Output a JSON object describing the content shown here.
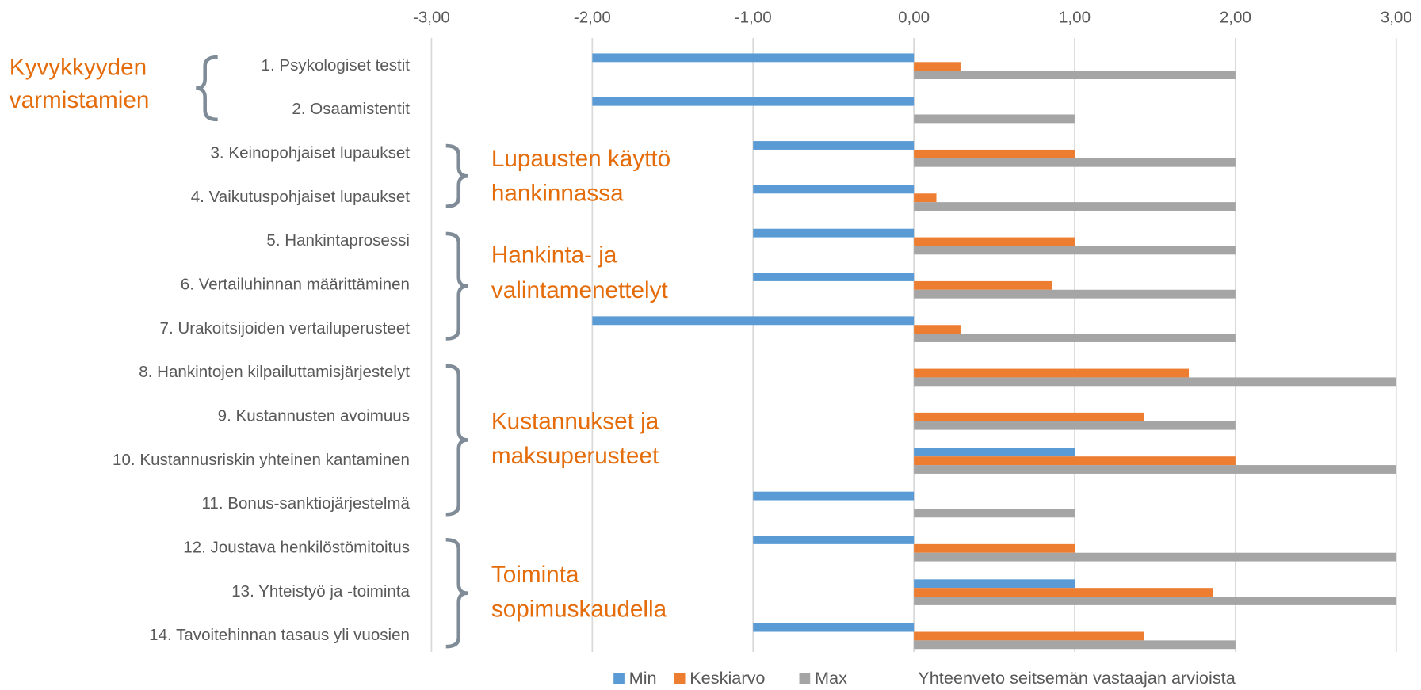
{
  "chart_data": {
    "type": "bar",
    "orientation": "horizontal",
    "categories": [
      "1. Psykologiset testit",
      "2. Osaamistentit",
      "3. Keinopohjaiset lupaukset",
      "4. Vaikutuspohjaiset lupaukset",
      "5. Hankintaprosessi",
      "6. Vertailuhinnan määrittäminen",
      "7. Urakoitsijoiden vertailuperusteet",
      "8. Hankintojen kilpailuttamisjärjestelyt",
      "9. Kustannusten avoimuus",
      "10. Kustannusriskin yhteinen kantaminen",
      "11. Bonus-sanktiojärjestelmä",
      "12. Joustava henkilöstömitoitus",
      "13. Yhteistyö ja -toiminta",
      "14. Tavoitehinnan tasaus yli vuosien"
    ],
    "series": [
      {
        "name": "Min",
        "color": "#5b9bd5",
        "values": [
          -2,
          -2,
          -1,
          -1,
          -1,
          -1,
          -2,
          0,
          0,
          1,
          -1,
          -1,
          1,
          -1
        ]
      },
      {
        "name": "Keskiarvo",
        "color": "#ed7d31",
        "values": [
          0.29,
          0,
          1,
          0.14,
          1,
          0.86,
          0.29,
          1.71,
          1.43,
          2,
          0,
          1,
          1.86,
          1.43
        ]
      },
      {
        "name": "Max",
        "color": "#a5a5a5",
        "values": [
          2,
          1,
          2,
          2,
          2,
          2,
          2,
          3,
          2,
          3,
          1,
          3,
          3,
          2
        ]
      }
    ],
    "xlim": [
      -3,
      3
    ],
    "xticks": [
      {
        "value": -3,
        "label": "-3,00"
      },
      {
        "value": -2,
        "label": "-2,00"
      },
      {
        "value": -1,
        "label": "-1,00"
      },
      {
        "value": 0,
        "label": "0,00"
      },
      {
        "value": 1,
        "label": "1,00"
      },
      {
        "value": 2,
        "label": "2,00"
      },
      {
        "value": 3,
        "label": "3,00"
      }
    ],
    "grid": true,
    "legend": "bottom",
    "annotations": [
      {
        "lines": [
          "Kyvykkyyden",
          "varmistamien"
        ]
      },
      {
        "lines": [
          "Lupausten käyttö",
          "hankinnassa"
        ]
      },
      {
        "lines": [
          "Hankinta- ja",
          "valintamenettelyt"
        ]
      },
      {
        "lines": [
          "Kustannukset ja",
          "maksuperusteet"
        ]
      },
      {
        "lines": [
          "Toiminta",
          "sopimuskaudella"
        ]
      }
    ],
    "note": "Yhteenveto seitsemän vastaajan arvioista"
  }
}
